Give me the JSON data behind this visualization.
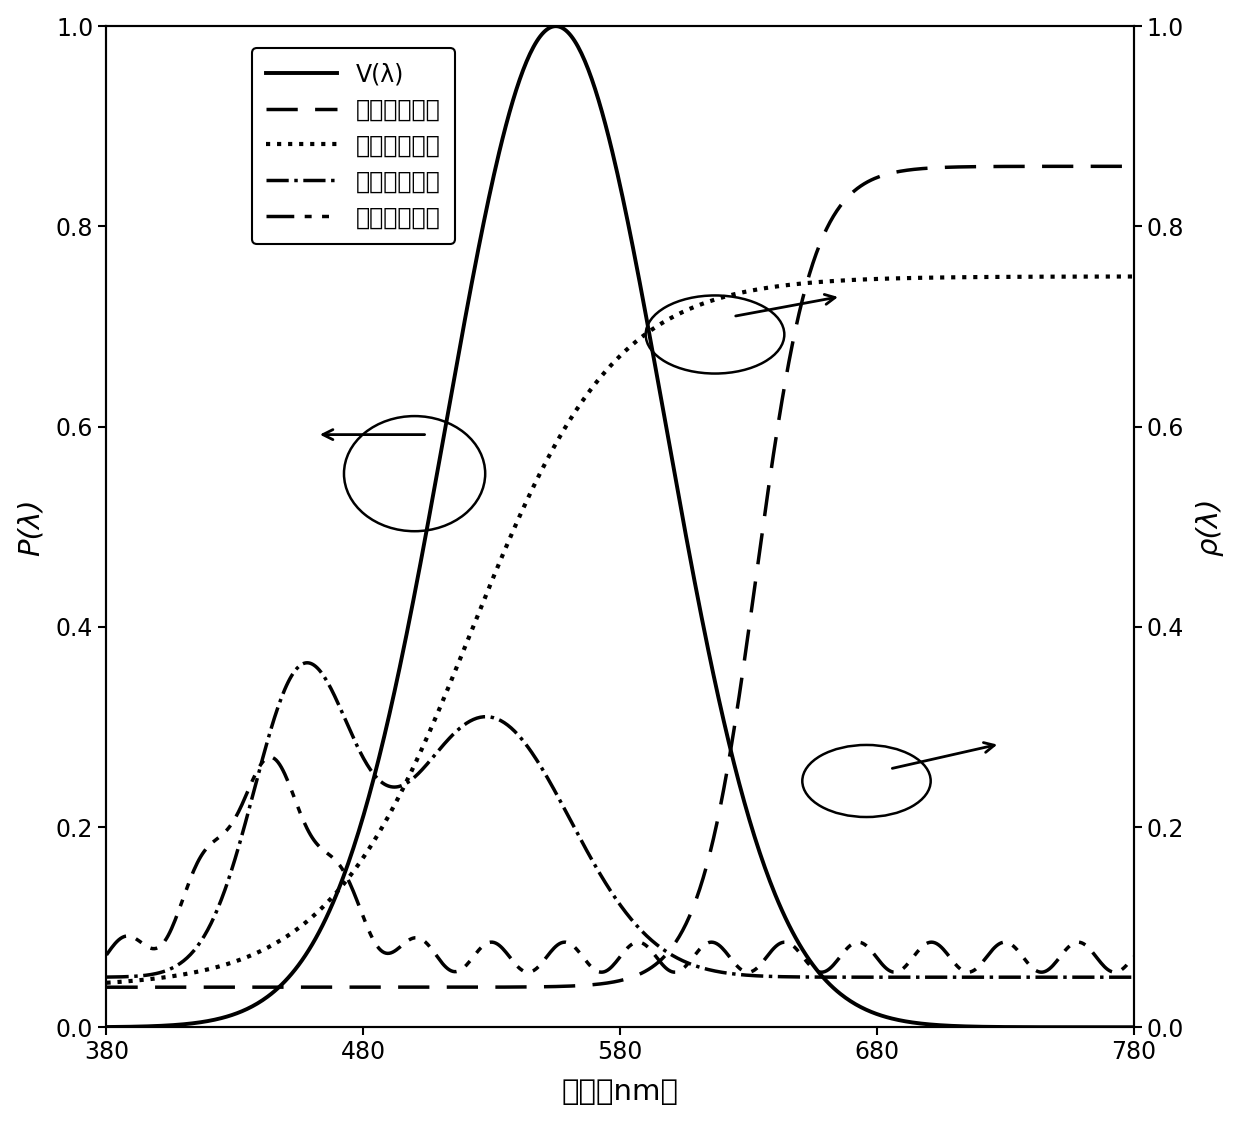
{
  "xlim": [
    380,
    780
  ],
  "ylim": [
    0.0,
    1.0
  ],
  "xticks": [
    380,
    480,
    580,
    680,
    780
  ],
  "yticks": [
    0.0,
    0.2,
    0.4,
    0.6,
    0.8,
    1.0
  ],
  "xlabel": "波长（nm）",
  "ylabel_left": "P(λ)",
  "ylabel_right": "ρ(λ)",
  "legend_labels": [
    "V(λ)",
    "红色样反射率",
    "黄色样反射率",
    "绿色样反射率",
    "蓝色样反射率"
  ],
  "figsize": [
    12.4,
    11.23
  ],
  "dpi": 100,
  "background": "white",
  "linewidth": 2.5,
  "fontsize_tick": 17,
  "fontsize_label": 21,
  "fontsize_legend": 17
}
